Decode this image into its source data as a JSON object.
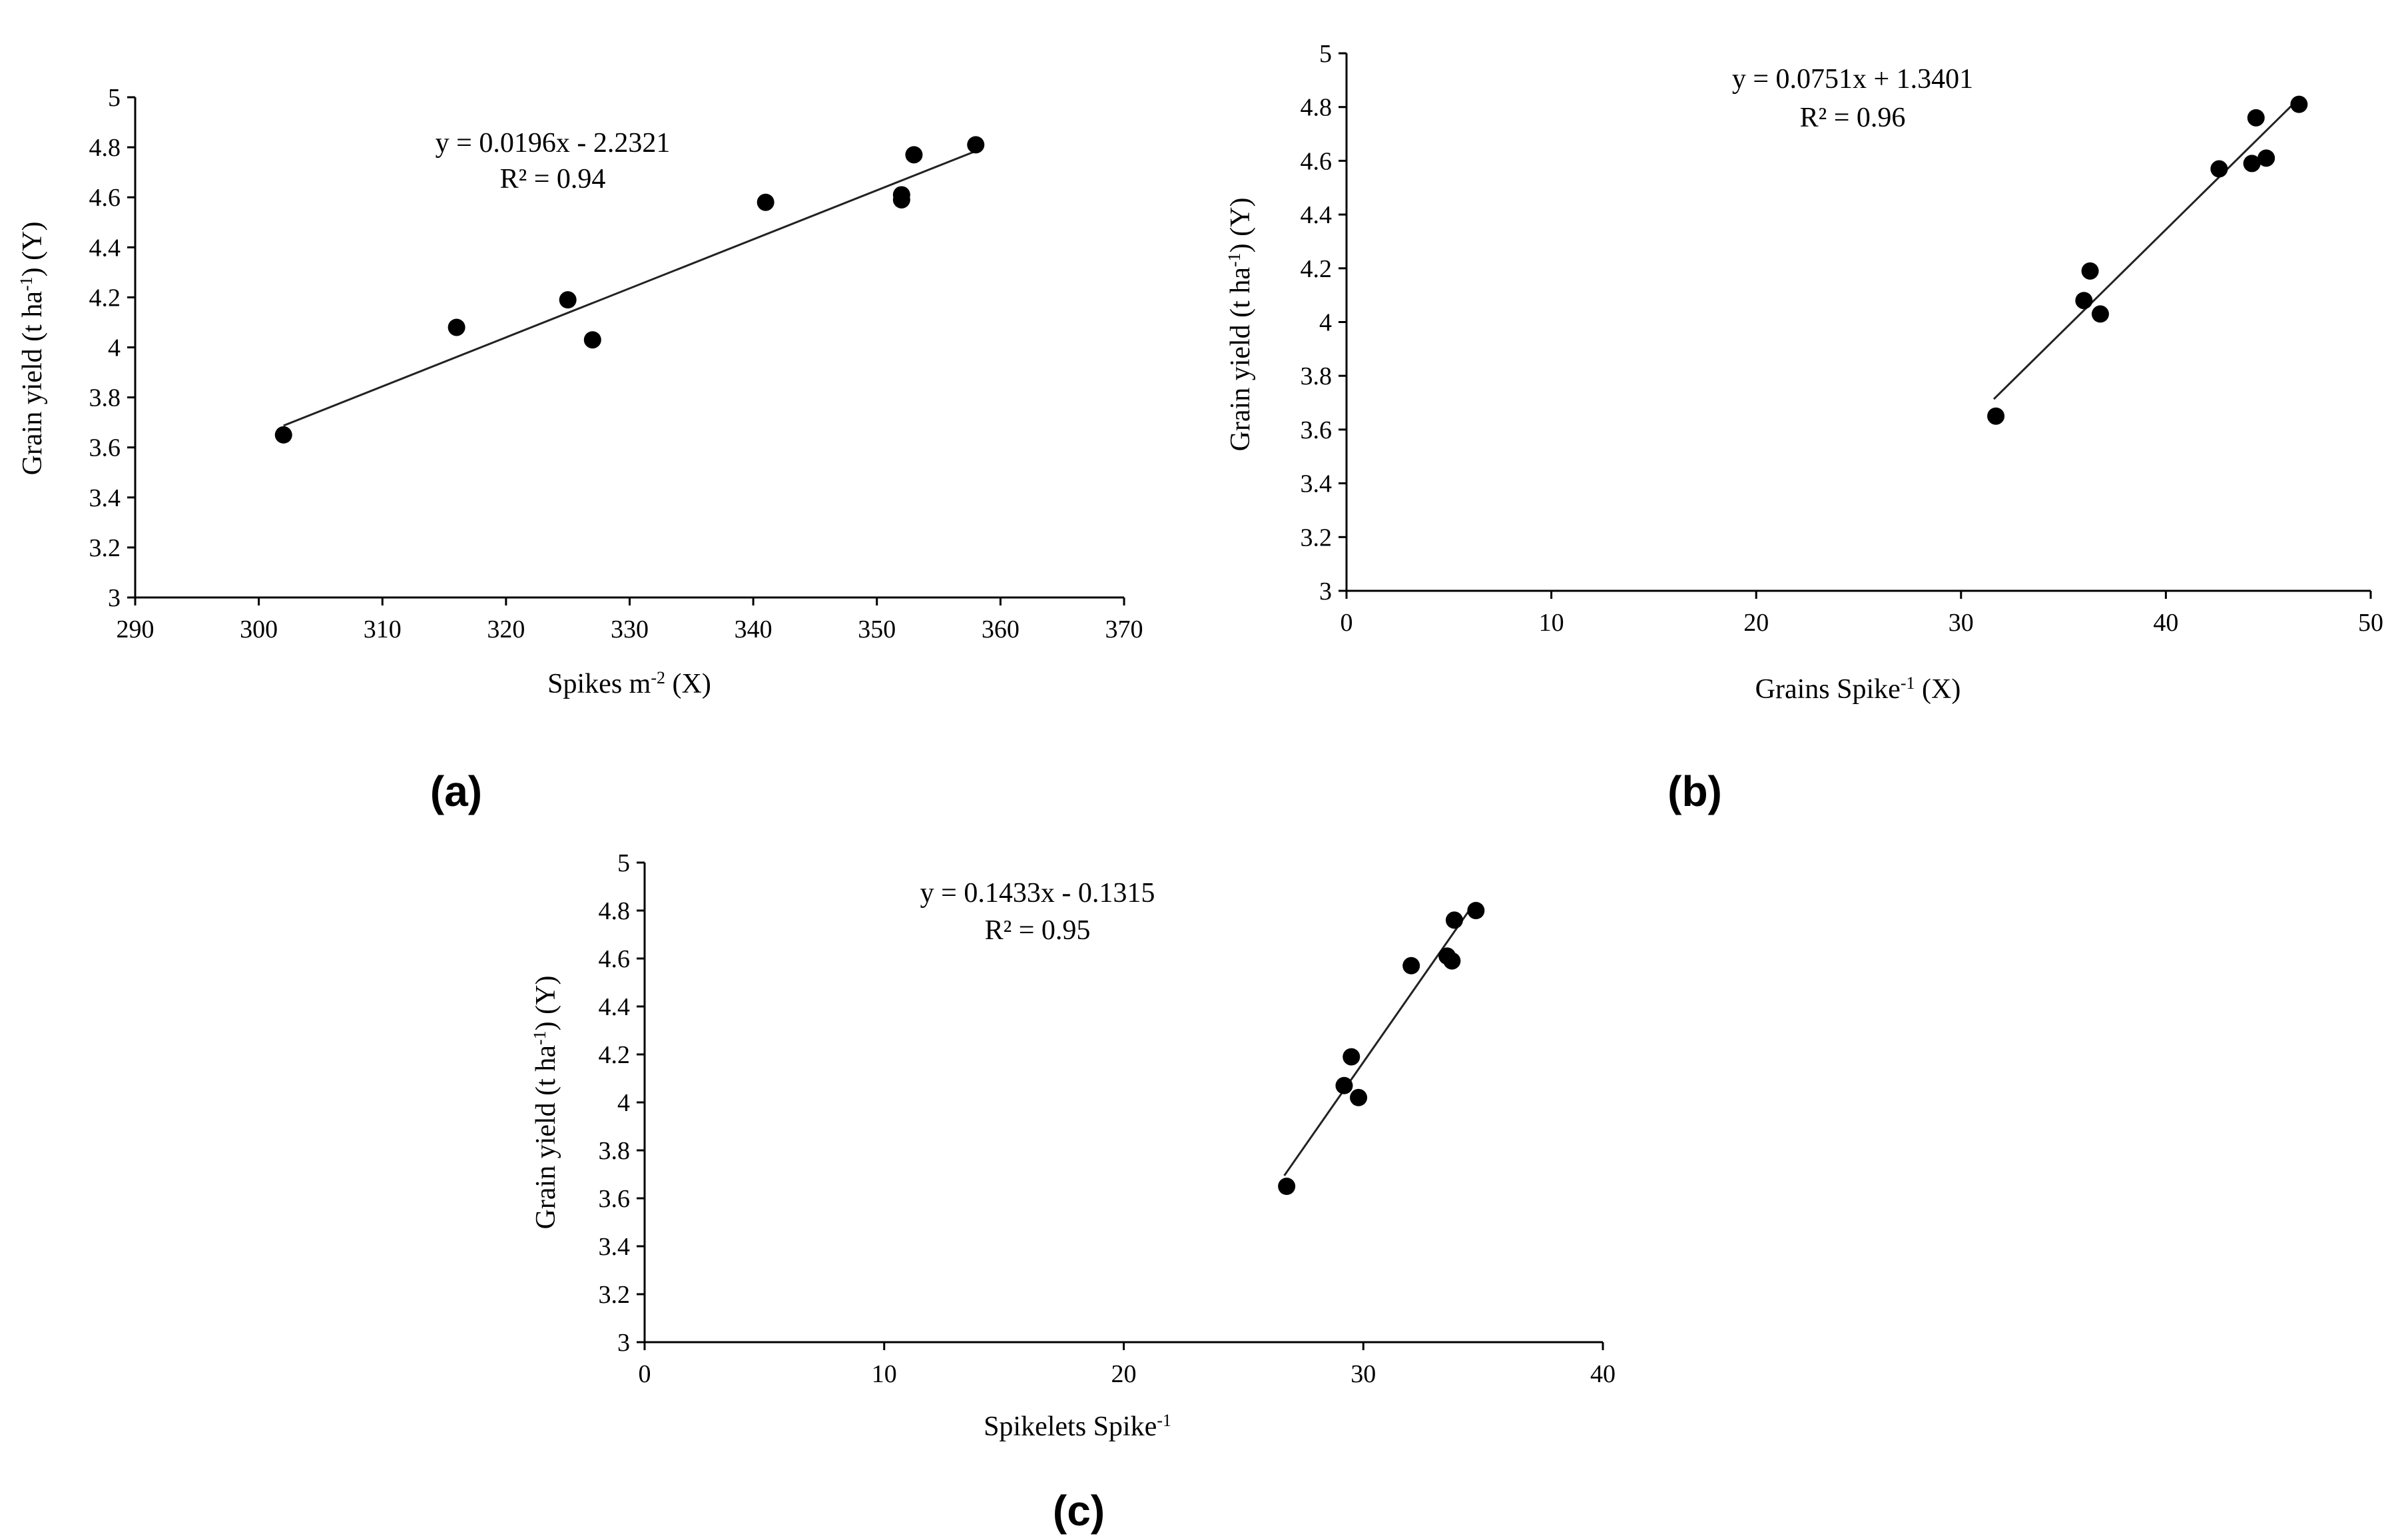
{
  "chart_data": [
    {
      "type": "scatter",
      "panel_label": "(a)",
      "xlim": [
        290,
        370
      ],
      "ylim": [
        3,
        5
      ],
      "x_ticks": [
        290,
        300,
        310,
        320,
        330,
        340,
        350,
        360,
        370
      ],
      "y_ticks": [
        3,
        3.2,
        3.4,
        3.6,
        3.8,
        4,
        4.2,
        4.4,
        4.6,
        4.8,
        5
      ],
      "x_tick_labels": [
        "290",
        "300",
        "310",
        "320",
        "330",
        "340",
        "350",
        "360",
        "370"
      ],
      "y_tick_labels": [
        "3",
        "3.2",
        "3.4",
        "3.6",
        "3.8",
        "4",
        "4.2",
        "4.4",
        "4.6",
        "4.8",
        "5"
      ],
      "xlabel": {
        "base": "Spikes m",
        "sup": "-2",
        "suffix": " (X)"
      },
      "ylabel": {
        "base": "Grain yield (t ha",
        "sup": "-1",
        "suffix": ") (Y)"
      },
      "equation": "y = 0.0196x - 2.2321",
      "r2": "R² = 0.94",
      "trendline": {
        "slope": 0.0196,
        "intercept": -2.2321,
        "x_range": [
          302,
          358
        ]
      },
      "points": [
        {
          "x": 302,
          "y": 3.65
        },
        {
          "x": 316,
          "y": 4.08
        },
        {
          "x": 325,
          "y": 4.19
        },
        {
          "x": 327,
          "y": 4.03
        },
        {
          "x": 341,
          "y": 4.58
        },
        {
          "x": 352,
          "y": 4.59
        },
        {
          "x": 352,
          "y": 4.61
        },
        {
          "x": 353,
          "y": 4.77
        },
        {
          "x": 358,
          "y": 4.81
        }
      ]
    },
    {
      "type": "scatter",
      "panel_label": "(b)",
      "xlim": [
        0,
        50
      ],
      "ylim": [
        3,
        5
      ],
      "x_ticks": [
        0,
        10,
        20,
        30,
        40,
        50
      ],
      "y_ticks": [
        3,
        3.2,
        3.4,
        3.6,
        3.8,
        4,
        4.2,
        4.4,
        4.6,
        4.8,
        5
      ],
      "x_tick_labels": [
        "0",
        "10",
        "20",
        "30",
        "40",
        "50"
      ],
      "y_tick_labels": [
        "3",
        "3.2",
        "3.4",
        "3.6",
        "3.8",
        "4",
        "4.2",
        "4.4",
        "4.6",
        "4.8",
        "5"
      ],
      "xlabel": {
        "base": "Grains Spike",
        "sup": "-1",
        "suffix": " (X)"
      },
      "ylabel": {
        "base": "Grain yield  (t ha",
        "sup": "-1",
        "suffix": ") (Y)"
      },
      "equation": "y = 0.0751x + 1.3401",
      "r2": "R² = 0.96",
      "trendline": {
        "slope": 0.0751,
        "intercept": 1.3401,
        "x_range": [
          31.6,
          46.3
        ]
      },
      "points": [
        {
          "x": 31.7,
          "y": 3.65
        },
        {
          "x": 36.0,
          "y": 4.08
        },
        {
          "x": 36.3,
          "y": 4.19
        },
        {
          "x": 36.8,
          "y": 4.03
        },
        {
          "x": 42.6,
          "y": 4.57
        },
        {
          "x": 44.2,
          "y": 4.59
        },
        {
          "x": 44.4,
          "y": 4.76
        },
        {
          "x": 44.9,
          "y": 4.61
        },
        {
          "x": 46.5,
          "y": 4.81
        }
      ]
    },
    {
      "type": "scatter",
      "panel_label": "(c)",
      "xlim": [
        0,
        40
      ],
      "ylim": [
        3,
        5
      ],
      "x_ticks": [
        0,
        10,
        20,
        30,
        40
      ],
      "y_ticks": [
        3,
        3.2,
        3.4,
        3.6,
        3.8,
        4,
        4.2,
        4.4,
        4.6,
        4.8,
        5
      ],
      "x_tick_labels": [
        "0",
        "10",
        "20",
        "30",
        "40"
      ],
      "y_tick_labels": [
        "3",
        "3.2",
        "3.4",
        "3.6",
        "3.8",
        "4",
        "4.2",
        "4.4",
        "4.6",
        "4.8",
        "5"
      ],
      "xlabel": {
        "base": "Spikelets Spike",
        "sup": "-1",
        "suffix": ""
      },
      "ylabel": {
        "base": "Grain yield  (t ha",
        "sup": "-1",
        "suffix": ") (Y)"
      },
      "equation": "y = 0.1433x - 0.1315",
      "r2": "R² = 0.95",
      "trendline": {
        "slope": 0.1433,
        "intercept": -0.1315,
        "x_range": [
          26.7,
          34.5
        ]
      },
      "points": [
        {
          "x": 26.8,
          "y": 3.65
        },
        {
          "x": 29.2,
          "y": 4.07
        },
        {
          "x": 29.5,
          "y": 4.19
        },
        {
          "x": 29.8,
          "y": 4.02
        },
        {
          "x": 32.0,
          "y": 4.57
        },
        {
          "x": 33.5,
          "y": 4.61
        },
        {
          "x": 33.7,
          "y": 4.59
        },
        {
          "x": 33.8,
          "y": 4.76
        },
        {
          "x": 34.7,
          "y": 4.8
        }
      ]
    }
  ]
}
